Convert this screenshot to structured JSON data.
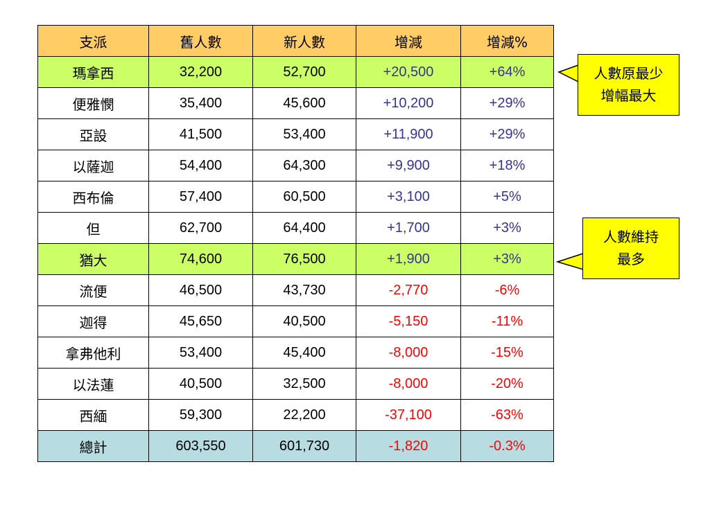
{
  "table": {
    "headers": [
      "支派",
      "舊人數",
      "新人數",
      "增減",
      "增減%"
    ],
    "rows": [
      {
        "tribe": "瑪拿西",
        "old": "32,200",
        "new": "52,700",
        "change": "+20,500",
        "pct": "+64%",
        "highlight": "green",
        "sign": "pos"
      },
      {
        "tribe": "便雅憫",
        "old": "35,400",
        "new": "45,600",
        "change": "+10,200",
        "pct": "+29%",
        "highlight": "",
        "sign": "pos"
      },
      {
        "tribe": "亞設",
        "old": "41,500",
        "new": "53,400",
        "change": "+11,900",
        "pct": "+29%",
        "highlight": "",
        "sign": "pos"
      },
      {
        "tribe": "以薩迦",
        "old": "54,400",
        "new": "64,300",
        "change": "+9,900",
        "pct": "+18%",
        "highlight": "",
        "sign": "pos"
      },
      {
        "tribe": "西布倫",
        "old": "57,400",
        "new": "60,500",
        "change": "+3,100",
        "pct": "+5%",
        "highlight": "",
        "sign": "pos"
      },
      {
        "tribe": "但",
        "old": "62,700",
        "new": "64,400",
        "change": "+1,700",
        "pct": "+3%",
        "highlight": "",
        "sign": "pos"
      },
      {
        "tribe": "猶大",
        "old": "74,600",
        "new": "76,500",
        "change": "+1,900",
        "pct": "+3%",
        "highlight": "green",
        "sign": "pos"
      },
      {
        "tribe": "流便",
        "old": "46,500",
        "new": "43,730",
        "change": "-2,770",
        "pct": "-6%",
        "highlight": "",
        "sign": "neg"
      },
      {
        "tribe": "迦得",
        "old": "45,650",
        "new": "40,500",
        "change": "-5,150",
        "pct": "-11%",
        "highlight": "",
        "sign": "neg"
      },
      {
        "tribe": "拿弗他利",
        "old": "53,400",
        "new": "45,400",
        "change": "-8,000",
        "pct": "-15%",
        "highlight": "",
        "sign": "neg"
      },
      {
        "tribe": "以法蓮",
        "old": "40,500",
        "new": "32,500",
        "change": "-8,000",
        "pct": "-20%",
        "highlight": "",
        "sign": "neg"
      },
      {
        "tribe": "西緬",
        "old": "59,300",
        "new": "22,200",
        "change": "-37,100",
        "pct": "-63%",
        "highlight": "",
        "sign": "neg"
      },
      {
        "tribe": "總計",
        "old": "603,550",
        "new": "601,730",
        "change": "-1,820",
        "pct": "-0.3%",
        "highlight": "total",
        "sign": "neg"
      }
    ]
  },
  "callouts": {
    "manasseh": {
      "line1": "人數原最少",
      "line2": "增幅最大"
    },
    "judah": {
      "line1": "人數維持",
      "line2": "最多"
    }
  },
  "colors": {
    "header_bg": "#ffcc66",
    "highlight_green": "#ccff66",
    "total_bg": "#b7dde3",
    "positive_text": "#333399",
    "negative_text": "#ff0000",
    "callout_bg": "#ffff00"
  }
}
